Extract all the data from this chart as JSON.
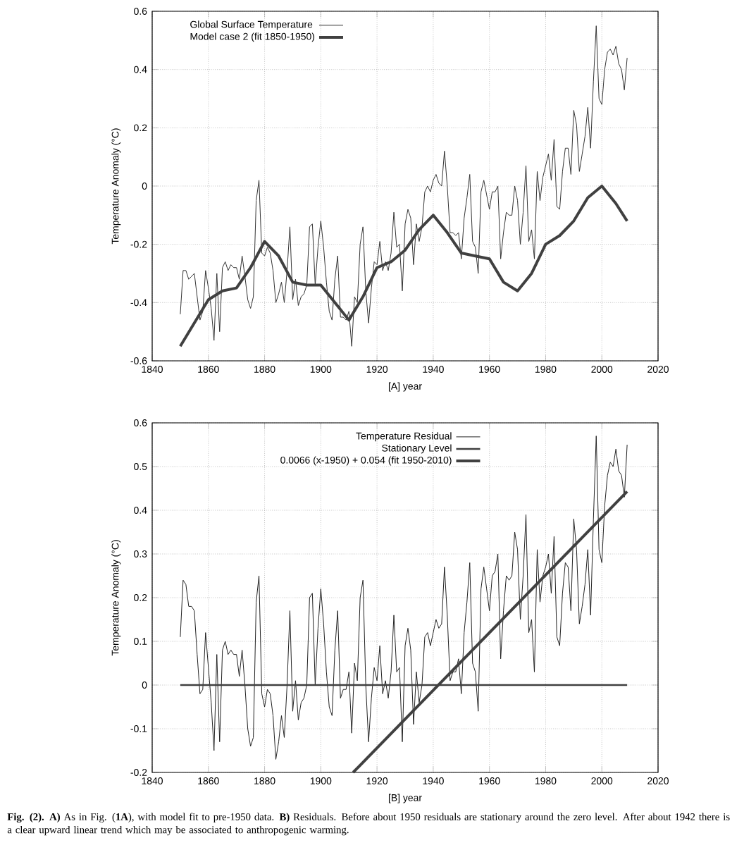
{
  "chart_data": [
    {
      "type": "line",
      "xlabel": "[A]   year",
      "ylabel": "Temperature Anomaly (°C)",
      "xlim": [
        1840,
        2020
      ],
      "xticks": [
        1840,
        1860,
        1880,
        1900,
        1920,
        1940,
        1960,
        1980,
        2000,
        2020
      ],
      "ylim": [
        -0.6,
        0.6
      ],
      "yticks": [
        -0.6,
        -0.4,
        -0.2,
        0,
        0.2,
        0.4,
        0.6
      ],
      "grid": true,
      "legend": "top left",
      "x": [
        1850,
        1851,
        1852,
        1853,
        1854,
        1855,
        1856,
        1857,
        1858,
        1859,
        1860,
        1861,
        1862,
        1863,
        1864,
        1865,
        1866,
        1867,
        1868,
        1869,
        1870,
        1871,
        1872,
        1873,
        1874,
        1875,
        1876,
        1877,
        1878,
        1879,
        1880,
        1881,
        1882,
        1883,
        1884,
        1885,
        1886,
        1887,
        1888,
        1889,
        1890,
        1891,
        1892,
        1893,
        1894,
        1895,
        1896,
        1897,
        1898,
        1899,
        1900,
        1901,
        1902,
        1903,
        1904,
        1905,
        1906,
        1907,
        1908,
        1909,
        1910,
        1911,
        1912,
        1913,
        1914,
        1915,
        1916,
        1917,
        1918,
        1919,
        1920,
        1921,
        1922,
        1923,
        1924,
        1925,
        1926,
        1927,
        1928,
        1929,
        1930,
        1931,
        1932,
        1933,
        1934,
        1935,
        1936,
        1937,
        1938,
        1939,
        1940,
        1941,
        1942,
        1943,
        1944,
        1945,
        1946,
        1947,
        1948,
        1949,
        1950,
        1951,
        1952,
        1953,
        1954,
        1955,
        1956,
        1957,
        1958,
        1959,
        1960,
        1961,
        1962,
        1963,
        1964,
        1965,
        1966,
        1967,
        1968,
        1969,
        1970,
        1971,
        1972,
        1973,
        1974,
        1975,
        1976,
        1977,
        1978,
        1979,
        1980,
        1981,
        1982,
        1983,
        1984,
        1985,
        1986,
        1987,
        1988,
        1989,
        1990,
        1991,
        1992,
        1993,
        1994,
        1995,
        1996,
        1997,
        1998,
        1999,
        2000,
        2001,
        2002,
        2003,
        2004,
        2005,
        2006,
        2007,
        2008,
        2009
      ],
      "series": [
        {
          "name": "Global Surface Temperature",
          "color": "#333333",
          "values": [
            -0.44,
            -0.29,
            -0.29,
            -0.32,
            -0.31,
            -0.3,
            -0.38,
            -0.46,
            -0.43,
            -0.29,
            -0.35,
            -0.42,
            -0.53,
            -0.3,
            -0.5,
            -0.28,
            -0.26,
            -0.29,
            -0.27,
            -0.28,
            -0.28,
            -0.32,
            -0.24,
            -0.31,
            -0.39,
            -0.42,
            -0.38,
            -0.05,
            0.02,
            -0.23,
            -0.24,
            -0.21,
            -0.23,
            -0.29,
            -0.4,
            -0.37,
            -0.33,
            -0.4,
            -0.29,
            -0.14,
            -0.39,
            -0.32,
            -0.41,
            -0.38,
            -0.37,
            -0.34,
            -0.14,
            -0.13,
            -0.34,
            -0.21,
            -0.12,
            -0.21,
            -0.33,
            -0.43,
            -0.46,
            -0.32,
            -0.24,
            -0.45,
            -0.45,
            -0.46,
            -0.43,
            -0.55,
            -0.38,
            -0.4,
            -0.2,
            -0.14,
            -0.36,
            -0.47,
            -0.35,
            -0.26,
            -0.27,
            -0.19,
            -0.29,
            -0.26,
            -0.29,
            -0.23,
            -0.09,
            -0.21,
            -0.2,
            -0.36,
            -0.13,
            -0.08,
            -0.11,
            -0.27,
            -0.13,
            -0.19,
            -0.14,
            -0.02,
            0.0,
            -0.02,
            0.02,
            0.04,
            0.01,
            0.0,
            0.12,
            0.0,
            -0.16,
            -0.16,
            -0.17,
            -0.16,
            -0.25,
            -0.11,
            -0.04,
            0.04,
            -0.19,
            -0.21,
            -0.3,
            -0.02,
            0.02,
            -0.03,
            -0.08,
            -0.02,
            -0.02,
            0.0,
            -0.25,
            -0.16,
            -0.09,
            -0.1,
            -0.1,
            0.0,
            -0.05,
            -0.2,
            -0.09,
            0.07,
            -0.19,
            -0.15,
            -0.25,
            0.05,
            -0.05,
            0.03,
            0.07,
            0.11,
            0.02,
            0.16,
            -0.07,
            -0.08,
            0.05,
            0.13,
            0.13,
            0.04,
            0.26,
            0.21,
            0.05,
            0.11,
            0.17,
            0.27,
            0.13,
            0.36,
            0.55,
            0.3,
            0.28,
            0.4,
            0.46,
            0.47,
            0.45,
            0.48,
            0.42,
            0.4,
            0.33,
            0.44
          ]
        },
        {
          "name": "Model case 2 (fit 1850-1950)",
          "color": "#404040",
          "x": [
            1850,
            1855,
            1860,
            1865,
            1870,
            1875,
            1880,
            1885,
            1890,
            1895,
            1900,
            1905,
            1910,
            1915,
            1920,
            1925,
            1930,
            1935,
            1940,
            1945,
            1950,
            1955,
            1960,
            1965,
            1970,
            1975,
            1980,
            1985,
            1990,
            1995,
            2000,
            2005,
            2009
          ],
          "values": [
            -0.55,
            -0.47,
            -0.39,
            -0.36,
            -0.35,
            -0.28,
            -0.19,
            -0.24,
            -0.33,
            -0.34,
            -0.34,
            -0.4,
            -0.46,
            -0.38,
            -0.28,
            -0.26,
            -0.22,
            -0.15,
            -0.1,
            -0.16,
            -0.23,
            -0.24,
            -0.25,
            -0.33,
            -0.36,
            -0.3,
            -0.2,
            -0.17,
            -0.12,
            -0.04,
            0.0,
            -0.06,
            -0.12
          ]
        }
      ]
    },
    {
      "type": "line",
      "xlabel": "[B]   year",
      "ylabel": "Temperature Anomaly (°C)",
      "xlim": [
        1840,
        2020
      ],
      "xticks": [
        1840,
        1860,
        1880,
        1900,
        1920,
        1940,
        1960,
        1980,
        2000,
        2020
      ],
      "ylim": [
        -0.2,
        0.6
      ],
      "yticks": [
        -0.2,
        -0.1,
        0,
        0.1,
        0.2,
        0.3,
        0.4,
        0.5,
        0.6
      ],
      "grid": true,
      "legend": "top",
      "annotations": [
        "**Fig. (2). A)** As in Fig. (**1A**), with model fit to pre-1950 data. **B)** Residuals. Before about 1950 residuals are stationary around the zero level. After about 1942 there is a clear upward linear trend which may be associated to anthropogenic warming."
      ],
      "x": [
        1850,
        1851,
        1852,
        1853,
        1854,
        1855,
        1856,
        1857,
        1858,
        1859,
        1860,
        1861,
        1862,
        1863,
        1864,
        1865,
        1866,
        1867,
        1868,
        1869,
        1870,
        1871,
        1872,
        1873,
        1874,
        1875,
        1876,
        1877,
        1878,
        1879,
        1880,
        1881,
        1882,
        1883,
        1884,
        1885,
        1886,
        1887,
        1888,
        1889,
        1890,
        1891,
        1892,
        1893,
        1894,
        1895,
        1896,
        1897,
        1898,
        1899,
        1900,
        1901,
        1902,
        1903,
        1904,
        1905,
        1906,
        1907,
        1908,
        1909,
        1910,
        1911,
        1912,
        1913,
        1914,
        1915,
        1916,
        1917,
        1918,
        1919,
        1920,
        1921,
        1922,
        1923,
        1924,
        1925,
        1926,
        1927,
        1928,
        1929,
        1930,
        1931,
        1932,
        1933,
        1934,
        1935,
        1936,
        1937,
        1938,
        1939,
        1940,
        1941,
        1942,
        1943,
        1944,
        1945,
        1946,
        1947,
        1948,
        1949,
        1950,
        1951,
        1952,
        1953,
        1954,
        1955,
        1956,
        1957,
        1958,
        1959,
        1960,
        1961,
        1962,
        1963,
        1964,
        1965,
        1966,
        1967,
        1968,
        1969,
        1970,
        1971,
        1972,
        1973,
        1974,
        1975,
        1976,
        1977,
        1978,
        1979,
        1980,
        1981,
        1982,
        1983,
        1984,
        1985,
        1986,
        1987,
        1988,
        1989,
        1990,
        1991,
        1992,
        1993,
        1994,
        1995,
        1996,
        1997,
        1998,
        1999,
        2000,
        2001,
        2002,
        2003,
        2004,
        2005,
        2006,
        2007,
        2008,
        2009
      ],
      "series": [
        {
          "name": "Temperature Residual",
          "color": "#222222",
          "values": [
            0.11,
            0.24,
            0.23,
            0.18,
            0.18,
            0.17,
            0.07,
            -0.02,
            -0.01,
            0.12,
            0.04,
            -0.04,
            -0.15,
            0.07,
            -0.13,
            0.08,
            0.1,
            0.07,
            0.08,
            0.07,
            0.07,
            0.02,
            0.08,
            0.0,
            -0.1,
            -0.14,
            -0.12,
            0.19,
            0.25,
            -0.02,
            -0.05,
            -0.01,
            -0.02,
            -0.07,
            -0.17,
            -0.13,
            -0.07,
            -0.12,
            0.0,
            0.17,
            -0.06,
            0.01,
            -0.08,
            -0.04,
            -0.03,
            0.0,
            0.2,
            0.21,
            0.0,
            0.13,
            0.22,
            0.14,
            0.03,
            -0.05,
            -0.07,
            0.08,
            0.17,
            -0.03,
            -0.01,
            -0.01,
            0.03,
            -0.11,
            0.05,
            0.01,
            0.2,
            0.24,
            0.0,
            -0.13,
            -0.03,
            0.04,
            0.01,
            0.09,
            -0.02,
            0.01,
            -0.03,
            0.03,
            0.16,
            0.03,
            0.04,
            -0.13,
            0.09,
            0.13,
            0.08,
            -0.09,
            0.03,
            -0.04,
            0.0,
            0.11,
            0.12,
            0.09,
            0.12,
            0.15,
            0.13,
            0.14,
            0.27,
            0.16,
            0.01,
            0.03,
            0.03,
            0.06,
            -0.02,
            0.12,
            0.19,
            0.28,
            0.05,
            0.03,
            -0.06,
            0.22,
            0.27,
            0.22,
            0.17,
            0.25,
            0.26,
            0.3,
            0.06,
            0.17,
            0.25,
            0.24,
            0.25,
            0.35,
            0.31,
            0.15,
            0.25,
            0.39,
            0.12,
            0.15,
            0.03,
            0.31,
            0.19,
            0.25,
            0.27,
            0.3,
            0.21,
            0.34,
            0.11,
            0.09,
            0.21,
            0.28,
            0.27,
            0.17,
            0.38,
            0.31,
            0.14,
            0.18,
            0.23,
            0.31,
            0.16,
            0.38,
            0.57,
            0.31,
            0.28,
            0.41,
            0.48,
            0.51,
            0.5,
            0.54,
            0.49,
            0.48,
            0.43,
            0.55
          ]
        },
        {
          "name": "Stationary Level",
          "color": "#404040",
          "x": [
            1850,
            2009
          ],
          "values": [
            0,
            0
          ]
        },
        {
          "name": "0.0066 (x-1950) + 0.054   (fit 1950-2010)",
          "color": "#404040",
          "x": [
            1911.5,
            2009
          ],
          "values": [
            -0.2,
            0.443
          ]
        }
      ]
    }
  ]
}
